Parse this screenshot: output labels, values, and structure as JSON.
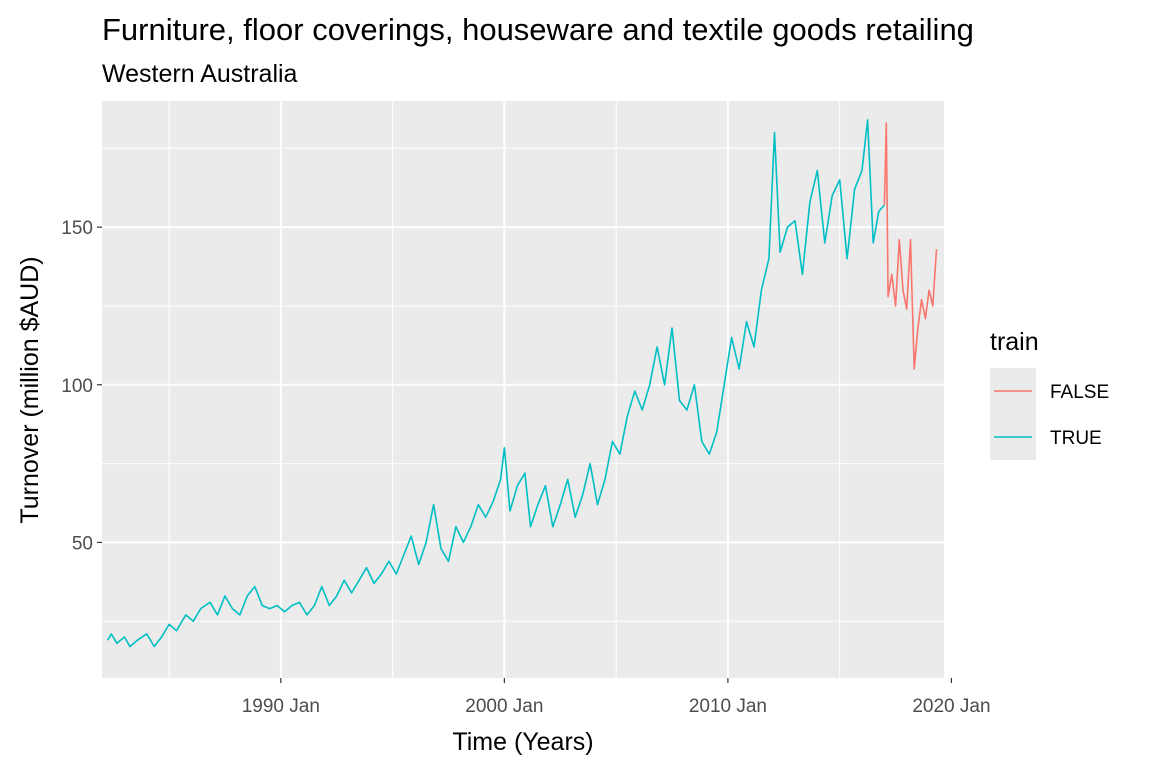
{
  "chart_data": {
    "type": "line",
    "title": "Furniture, floor coverings, houseware and textile goods retailing",
    "subtitle": "Western Australia",
    "xlabel": "Time (Years)",
    "ylabel": "Turnover (million $AUD)",
    "x_ticks": [
      "1990 Jan",
      "2000 Jan",
      "2010 Jan",
      "2020 Jan"
    ],
    "y_ticks": [
      50,
      100,
      150
    ],
    "xlim": [
      "1982-01",
      "2019-09"
    ],
    "ylim": [
      7,
      190
    ],
    "grid": true,
    "legend_title": "train",
    "legend_position": "right",
    "series": [
      {
        "name": "TRUE",
        "color": "#00BFC4",
        "points": [
          [
            "1982-04",
            19
          ],
          [
            "1982-06",
            21
          ],
          [
            "1982-09",
            18
          ],
          [
            "1983-01",
            20
          ],
          [
            "1983-04",
            17
          ],
          [
            "1983-08",
            19
          ],
          [
            "1984-01",
            21
          ],
          [
            "1984-05",
            17
          ],
          [
            "1984-09",
            20
          ],
          [
            "1985-01",
            24
          ],
          [
            "1985-05",
            22
          ],
          [
            "1985-10",
            27
          ],
          [
            "1986-02",
            25
          ],
          [
            "1986-06",
            29
          ],
          [
            "1986-11",
            31
          ],
          [
            "1987-03",
            27
          ],
          [
            "1987-07",
            33
          ],
          [
            "1987-11",
            29
          ],
          [
            "1988-03",
            27
          ],
          [
            "1988-07",
            33
          ],
          [
            "1988-11",
            36
          ],
          [
            "1989-03",
            30
          ],
          [
            "1989-07",
            29
          ],
          [
            "1989-11",
            30
          ],
          [
            "1990-03",
            28
          ],
          [
            "1990-07",
            30
          ],
          [
            "1990-11",
            31
          ],
          [
            "1991-03",
            27
          ],
          [
            "1991-07",
            30
          ],
          [
            "1991-11",
            36
          ],
          [
            "1992-03",
            30
          ],
          [
            "1992-07",
            33
          ],
          [
            "1992-11",
            38
          ],
          [
            "1993-03",
            34
          ],
          [
            "1993-07",
            38
          ],
          [
            "1993-11",
            42
          ],
          [
            "1994-03",
            37
          ],
          [
            "1994-07",
            40
          ],
          [
            "1994-11",
            44
          ],
          [
            "1995-03",
            40
          ],
          [
            "1995-07",
            46
          ],
          [
            "1995-11",
            52
          ],
          [
            "1996-03",
            43
          ],
          [
            "1996-07",
            50
          ],
          [
            "1996-11",
            62
          ],
          [
            "1997-03",
            48
          ],
          [
            "1997-07",
            44
          ],
          [
            "1997-11",
            55
          ],
          [
            "1998-03",
            50
          ],
          [
            "1998-07",
            55
          ],
          [
            "1998-11",
            62
          ],
          [
            "1999-03",
            58
          ],
          [
            "1999-07",
            63
          ],
          [
            "1999-11",
            70
          ],
          [
            "2000-01",
            80
          ],
          [
            "2000-04",
            60
          ],
          [
            "2000-08",
            68
          ],
          [
            "2000-12",
            72
          ],
          [
            "2001-03",
            55
          ],
          [
            "2001-07",
            62
          ],
          [
            "2001-11",
            68
          ],
          [
            "2002-03",
            55
          ],
          [
            "2002-07",
            62
          ],
          [
            "2002-11",
            70
          ],
          [
            "2003-03",
            58
          ],
          [
            "2003-07",
            65
          ],
          [
            "2003-11",
            75
          ],
          [
            "2004-03",
            62
          ],
          [
            "2004-07",
            70
          ],
          [
            "2004-11",
            82
          ],
          [
            "2005-03",
            78
          ],
          [
            "2005-07",
            90
          ],
          [
            "2005-11",
            98
          ],
          [
            "2006-03",
            92
          ],
          [
            "2006-07",
            100
          ],
          [
            "2006-11",
            112
          ],
          [
            "2007-03",
            100
          ],
          [
            "2007-07",
            118
          ],
          [
            "2007-11",
            95
          ],
          [
            "2008-03",
            92
          ],
          [
            "2008-07",
            100
          ],
          [
            "2008-11",
            82
          ],
          [
            "2009-03",
            78
          ],
          [
            "2009-07",
            85
          ],
          [
            "2009-11",
            100
          ],
          [
            "2010-03",
            115
          ],
          [
            "2010-07",
            105
          ],
          [
            "2010-11",
            120
          ],
          [
            "2011-03",
            112
          ],
          [
            "2011-07",
            130
          ],
          [
            "2011-11",
            140
          ],
          [
            "2012-02",
            180
          ],
          [
            "2012-05",
            142
          ],
          [
            "2012-09",
            150
          ],
          [
            "2013-01",
            152
          ],
          [
            "2013-05",
            135
          ],
          [
            "2013-09",
            158
          ],
          [
            "2014-01",
            168
          ],
          [
            "2014-05",
            145
          ],
          [
            "2014-09",
            160
          ],
          [
            "2015-01",
            165
          ],
          [
            "2015-05",
            140
          ],
          [
            "2015-09",
            162
          ],
          [
            "2016-01",
            168
          ],
          [
            "2016-04",
            184
          ],
          [
            "2016-07",
            145
          ],
          [
            "2016-10",
            155
          ],
          [
            "2017-01",
            157
          ]
        ]
      },
      {
        "name": "FALSE",
        "color": "#F8766D",
        "points": [
          [
            "2017-01",
            157
          ],
          [
            "2017-02",
            183
          ],
          [
            "2017-03",
            128
          ],
          [
            "2017-05",
            135
          ],
          [
            "2017-07",
            125
          ],
          [
            "2017-09",
            146
          ],
          [
            "2017-11",
            130
          ],
          [
            "2018-01",
            124
          ],
          [
            "2018-03",
            146
          ],
          [
            "2018-05",
            105
          ],
          [
            "2018-07",
            118
          ],
          [
            "2018-09",
            127
          ],
          [
            "2018-11",
            121
          ],
          [
            "2019-01",
            130
          ],
          [
            "2019-03",
            125
          ],
          [
            "2019-05",
            143
          ]
        ]
      }
    ]
  }
}
